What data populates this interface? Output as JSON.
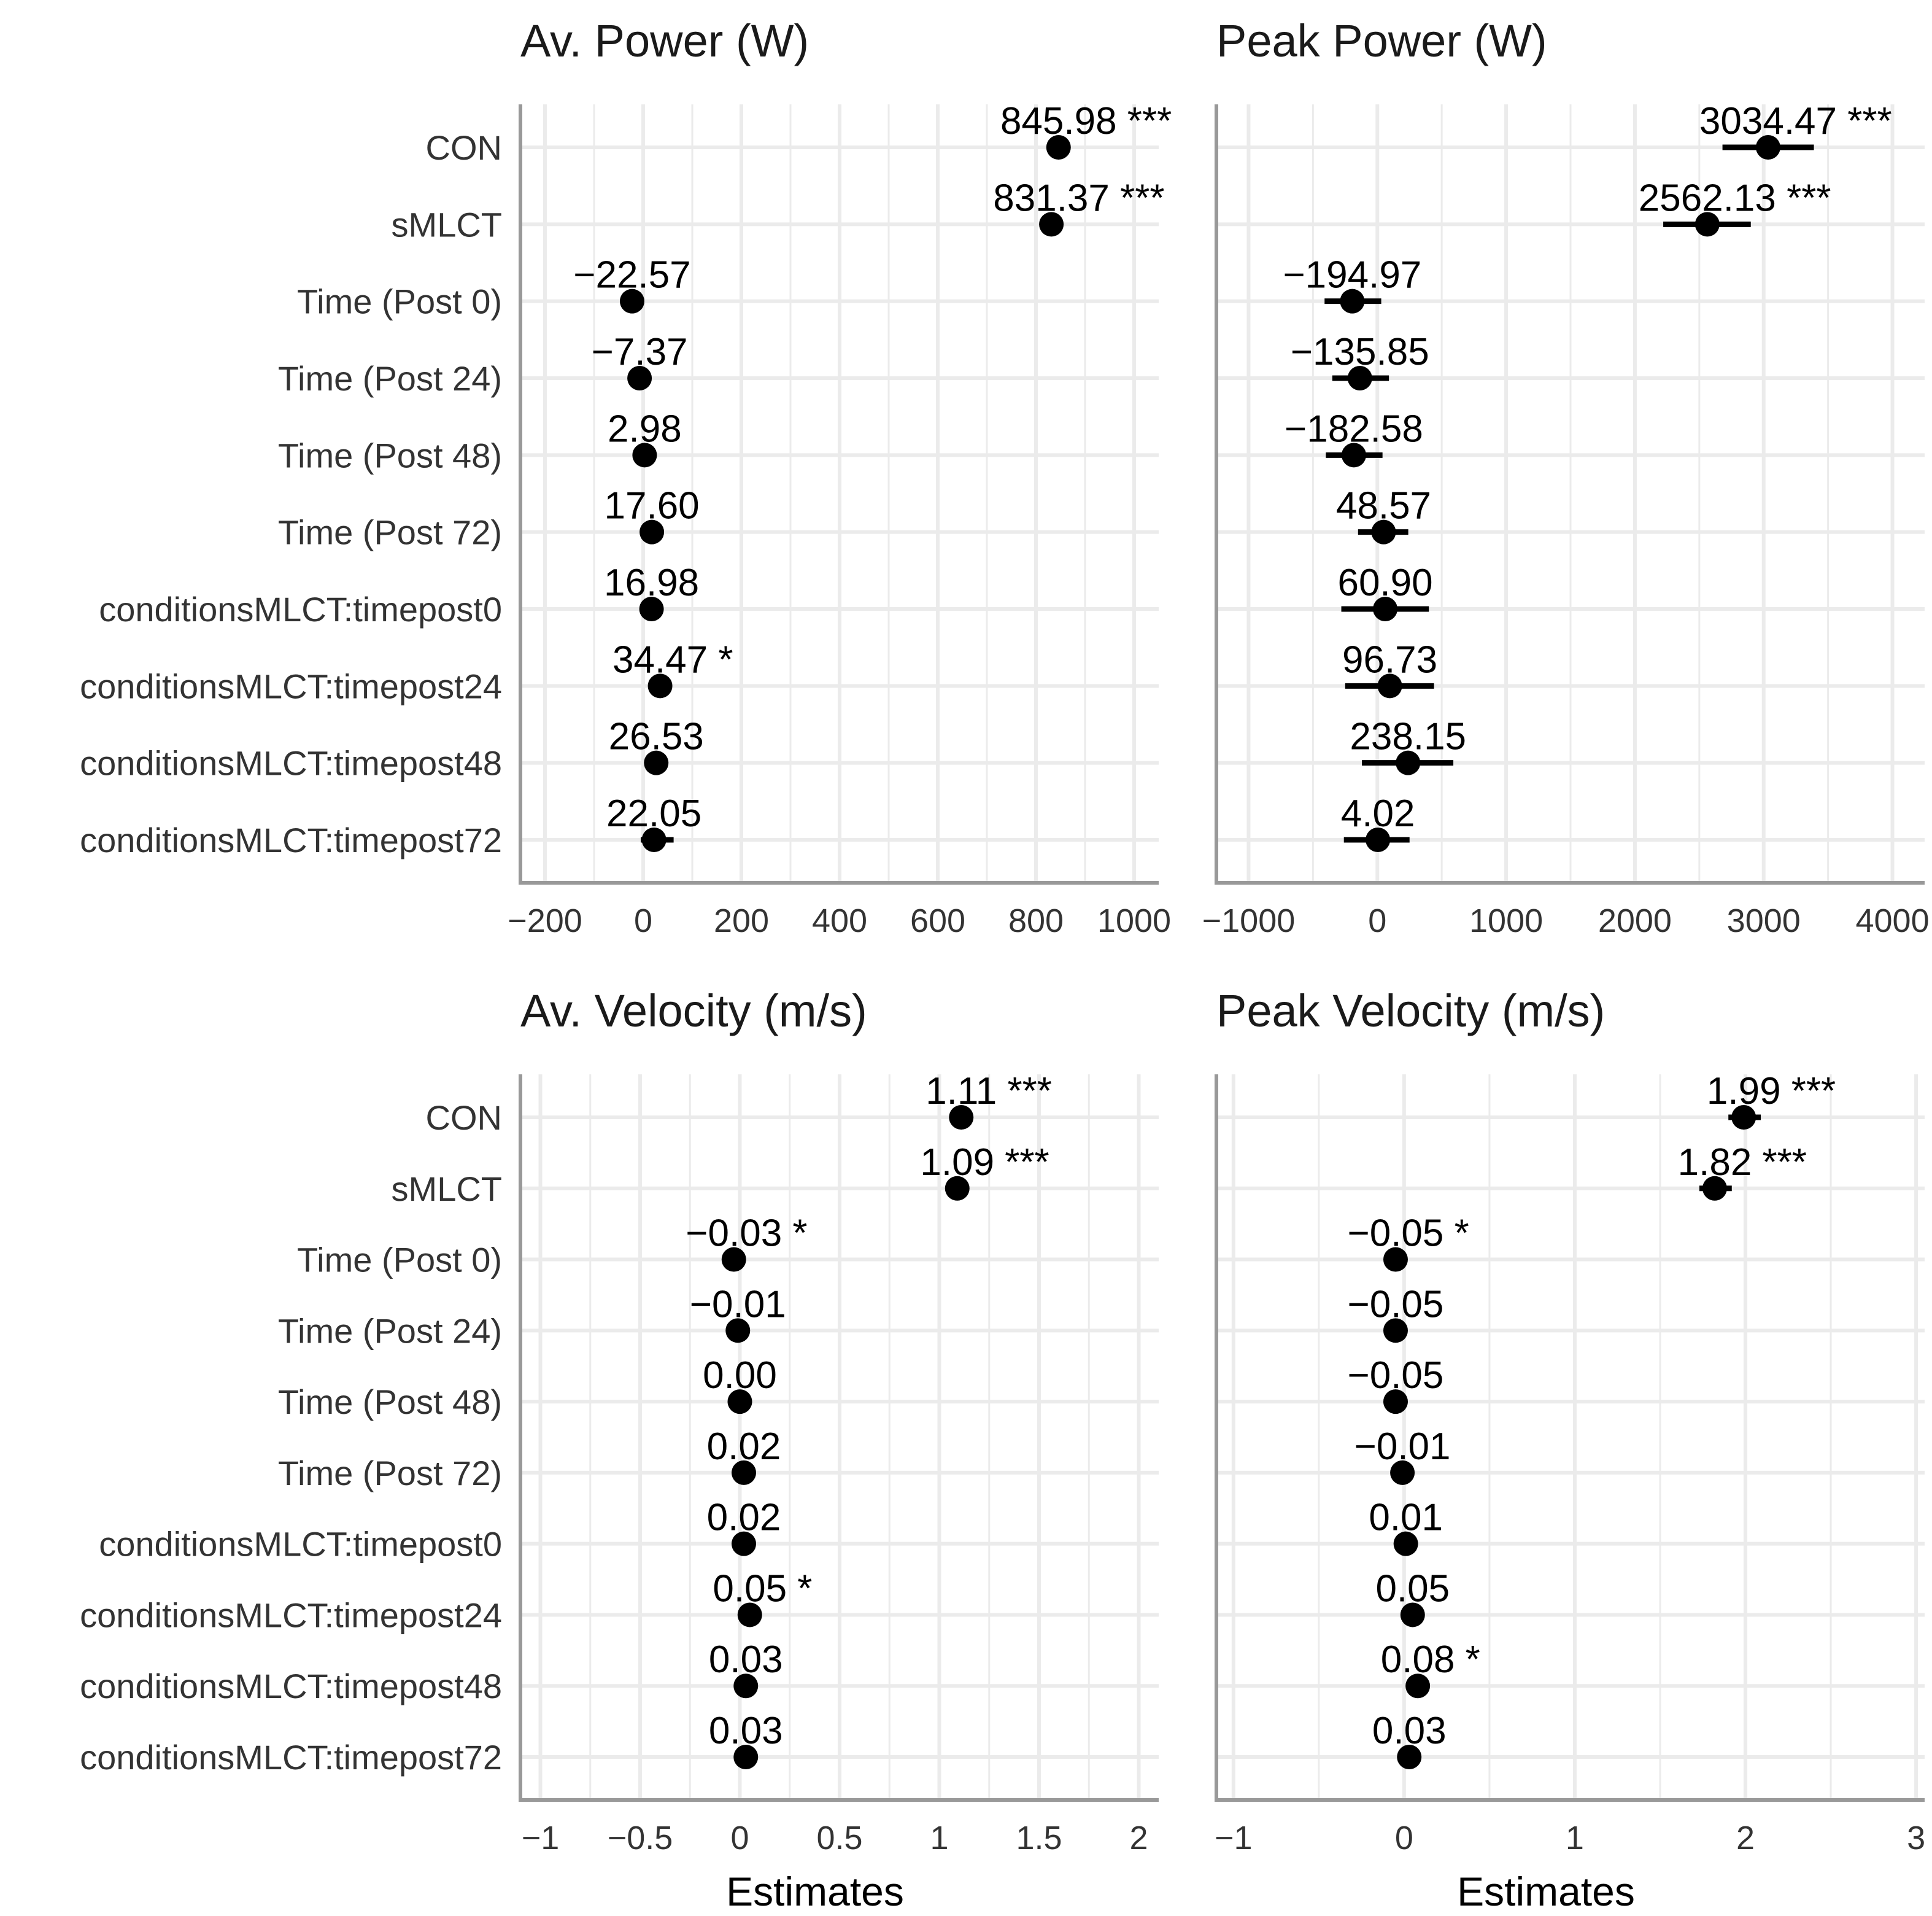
{
  "chart_data": [
    {
      "type": "forest",
      "title": "Av. Power (W)",
      "xlabel": "",
      "xlim": [
        -250,
        1050
      ],
      "xticks": [
        -200,
        0,
        200,
        400,
        600,
        800,
        1000
      ],
      "xtick_labels": [
        "−200",
        "0",
        "200",
        "400",
        "600",
        "800",
        "1000"
      ],
      "rows": [
        {
          "term": "CON",
          "estimate": 845.98,
          "label": "845.98 ***",
          "ci": [
            825,
            866
          ]
        },
        {
          "term": "sMLCT",
          "estimate": 831.37,
          "label": "831.37 ***",
          "ci": [
            810,
            852
          ]
        },
        {
          "term": "Time (Post 0)",
          "estimate": -22.57,
          "label": "−22.57",
          "ci": [
            -33,
            -12
          ]
        },
        {
          "term": "Time (Post 24)",
          "estimate": -7.37,
          "label": "−7.37",
          "ci": [
            -18,
            3
          ]
        },
        {
          "term": "Time (Post 48)",
          "estimate": 2.98,
          "label": "2.98",
          "ci": [
            -8,
            14
          ]
        },
        {
          "term": "Time (Post 72)",
          "estimate": 17.6,
          "label": "17.60",
          "ci": [
            7,
            28
          ]
        },
        {
          "term": "conditionsMLCT:timepost0",
          "estimate": 16.98,
          "label": "16.98",
          "ci": [
            2,
            32
          ]
        },
        {
          "term": "conditionsMLCT:timepost24",
          "estimate": 34.47,
          "label": "34.47 *",
          "ci": [
            15,
            54
          ]
        },
        {
          "term": "conditionsMLCT:timepost48",
          "estimate": 26.53,
          "label": "26.53",
          "ci": [
            10,
            42
          ]
        },
        {
          "term": "conditionsMLCT:timepost72",
          "estimate": 22.05,
          "label": "22.05",
          "ci": [
            -5,
            62
          ]
        }
      ]
    },
    {
      "type": "forest",
      "title": "Peak Power (W)",
      "xlabel": "",
      "xlim": [
        -1250,
        4250
      ],
      "xticks": [
        -1000,
        0,
        1000,
        2000,
        3000,
        4000
      ],
      "xtick_labels": [
        "−1000",
        "0",
        "1000",
        "2000",
        "3000",
        "4000"
      ],
      "rows": [
        {
          "term": "CON",
          "estimate": 3034.47,
          "label": "3034.47 ***",
          "ci": [
            2680,
            3390
          ]
        },
        {
          "term": "sMLCT",
          "estimate": 2562.13,
          "label": "2562.13 ***",
          "ci": [
            2220,
            2900
          ]
        },
        {
          "term": "Time (Post 0)",
          "estimate": -194.97,
          "label": "−194.97",
          "ci": [
            -410,
            30
          ]
        },
        {
          "term": "Time (Post 24)",
          "estimate": -135.85,
          "label": "−135.85",
          "ci": [
            -350,
            90
          ]
        },
        {
          "term": "Time (Post 48)",
          "estimate": -182.58,
          "label": "−182.58",
          "ci": [
            -400,
            40
          ]
        },
        {
          "term": "Time (Post 72)",
          "estimate": 48.57,
          "label": "48.57",
          "ci": [
            -150,
            240
          ]
        },
        {
          "term": "conditionsMLCT:timepost0",
          "estimate": 60.9,
          "label": "60.90",
          "ci": [
            -280,
            400
          ]
        },
        {
          "term": "conditionsMLCT:timepost24",
          "estimate": 96.73,
          "label": "96.73",
          "ci": [
            -250,
            440
          ]
        },
        {
          "term": "conditionsMLCT:timepost48",
          "estimate": 238.15,
          "label": "238.15",
          "ci": [
            -120,
            590
          ]
        },
        {
          "term": "conditionsMLCT:timepost72",
          "estimate": 4.02,
          "label": "4.02",
          "ci": [
            -260,
            250
          ]
        }
      ]
    },
    {
      "type": "forest",
      "title": "Av. Velocity (m/s)",
      "xlabel": "Estimates",
      "xlim": [
        -1.1,
        2.1
      ],
      "xticks": [
        -1,
        -0.5,
        0,
        0.5,
        1,
        1.5,
        2
      ],
      "xtick_labels": [
        "−1",
        "−0.5",
        "0",
        "0.5",
        "1",
        "1.5",
        "2"
      ],
      "rows": [
        {
          "term": "CON",
          "estimate": 1.11,
          "label": "1.11 ***",
          "ci": [
            1.08,
            1.14
          ]
        },
        {
          "term": "sMLCT",
          "estimate": 1.09,
          "label": "1.09 ***",
          "ci": [
            1.06,
            1.12
          ]
        },
        {
          "term": "Time (Post 0)",
          "estimate": -0.03,
          "label": "−0.03 *",
          "ci": [
            -0.05,
            -0.01
          ]
        },
        {
          "term": "Time (Post 24)",
          "estimate": -0.01,
          "label": "−0.01",
          "ci": [
            -0.03,
            0.01
          ]
        },
        {
          "term": "Time (Post 48)",
          "estimate": 0.0,
          "label": "0.00",
          "ci": [
            -0.02,
            0.02
          ]
        },
        {
          "term": "Time (Post 72)",
          "estimate": 0.02,
          "label": "0.02",
          "ci": [
            0.0,
            0.04
          ]
        },
        {
          "term": "conditionsMLCT:timepost0",
          "estimate": 0.02,
          "label": "0.02",
          "ci": [
            -0.01,
            0.05
          ]
        },
        {
          "term": "conditionsMLCT:timepost24",
          "estimate": 0.05,
          "label": "0.05 *",
          "ci": [
            0.02,
            0.08
          ]
        },
        {
          "term": "conditionsMLCT:timepost48",
          "estimate": 0.03,
          "label": "0.03",
          "ci": [
            0.0,
            0.06
          ]
        },
        {
          "term": "conditionsMLCT:timepost72",
          "estimate": 0.03,
          "label": "0.03",
          "ci": [
            0.0,
            0.06
          ]
        }
      ]
    },
    {
      "type": "forest",
      "title": "Peak Velocity (m/s)",
      "xlabel": "Estimates",
      "xlim": [
        -1.1,
        3.05
      ],
      "xticks": [
        -1,
        0,
        1,
        2,
        3
      ],
      "xtick_labels": [
        "−1",
        "0",
        "1",
        "2",
        "3"
      ],
      "rows": [
        {
          "term": "CON",
          "estimate": 1.99,
          "label": "1.99 ***",
          "ci": [
            1.9,
            2.09
          ]
        },
        {
          "term": "sMLCT",
          "estimate": 1.82,
          "label": "1.82 ***",
          "ci": [
            1.73,
            1.92
          ]
        },
        {
          "term": "Time (Post 0)",
          "estimate": -0.05,
          "label": "−0.05 *",
          "ci": [
            -0.09,
            -0.01
          ]
        },
        {
          "term": "Time (Post 24)",
          "estimate": -0.05,
          "label": "−0.05",
          "ci": [
            -0.09,
            -0.01
          ]
        },
        {
          "term": "Time (Post 48)",
          "estimate": -0.05,
          "label": "−0.05",
          "ci": [
            -0.09,
            -0.01
          ]
        },
        {
          "term": "Time (Post 72)",
          "estimate": -0.01,
          "label": "−0.01",
          "ci": [
            -0.05,
            0.03
          ]
        },
        {
          "term": "conditionsMLCT:timepost0",
          "estimate": 0.01,
          "label": "0.01",
          "ci": [
            -0.04,
            0.06
          ]
        },
        {
          "term": "conditionsMLCT:timepost24",
          "estimate": 0.05,
          "label": "0.05",
          "ci": [
            0.0,
            0.1
          ]
        },
        {
          "term": "conditionsMLCT:timepost48",
          "estimate": 0.08,
          "label": "0.08 *",
          "ci": [
            0.03,
            0.13
          ]
        },
        {
          "term": "conditionsMLCT:timepost72",
          "estimate": 0.03,
          "label": "0.03",
          "ci": [
            -0.02,
            0.08
          ]
        }
      ]
    }
  ]
}
